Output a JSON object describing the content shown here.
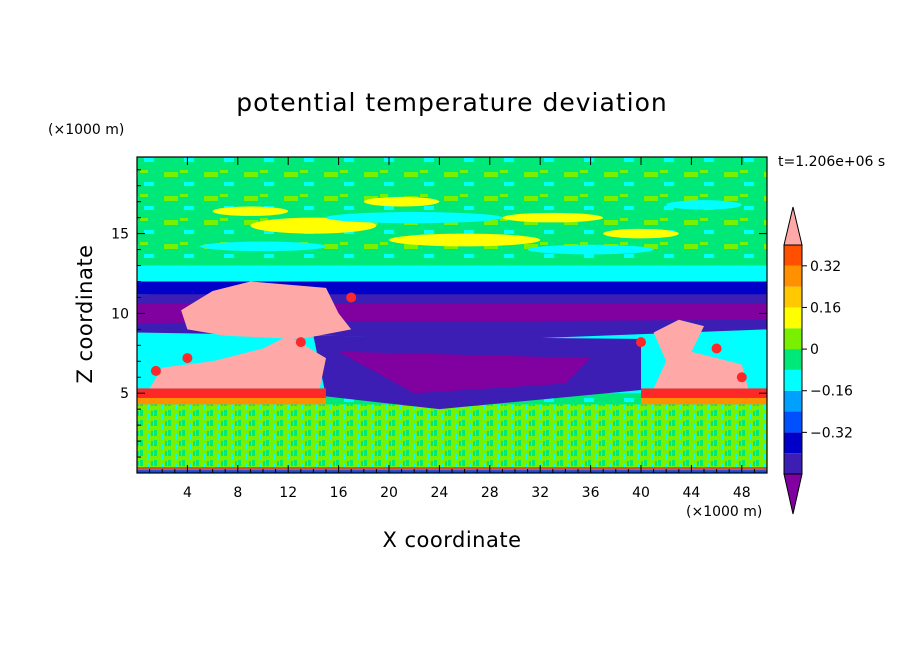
{
  "chart_data": {
    "type": "heatmap",
    "title": "potential temperature deviation",
    "xlabel": "X coordinate",
    "ylabel": "Z coordinate",
    "x_unit": "(×1000 m)",
    "y_unit": "(×1000 m)",
    "time_label": "t=1.206e+06 s",
    "xlim": [
      0,
      50
    ],
    "ylim": [
      0,
      19.8
    ],
    "x_ticks": [
      4,
      8,
      12,
      16,
      20,
      24,
      28,
      32,
      36,
      40,
      44,
      48
    ],
    "y_ticks": [
      5,
      10,
      15
    ],
    "colorbar": {
      "levels": [
        -0.48,
        -0.4,
        -0.32,
        -0.24,
        -0.16,
        -0.08,
        0,
        0.08,
        0.16,
        0.24,
        0.32,
        0.4
      ],
      "colors": [
        "#8000a0",
        "#3c1eb4",
        "#0000c8",
        "#0050ff",
        "#00a0ff",
        "#00ffff",
        "#00e878",
        "#78f000",
        "#ffff00",
        "#ffc800",
        "#ff9000",
        "#ff5000",
        "#ff2828",
        "#ffa8a8"
      ],
      "tick_labels": [
        "0.32",
        "0.16",
        "0",
        "−0.16",
        "−0.32"
      ],
      "tick_values": [
        0.32,
        0.16,
        0,
        -0.16,
        -0.32
      ],
      "extend": "both"
    },
    "regions": [
      {
        "name": "upper-layer",
        "z_range": [
          13.5,
          19.8
        ],
        "dominant_value": 0.02
      },
      {
        "name": "cold-band",
        "z_range": [
          6,
          12
        ],
        "dominant_value": -0.4
      },
      {
        "name": "warm-plume-left",
        "x_range": [
          3,
          14
        ],
        "z_range": [
          4.5,
          12
        ],
        "dominant_value": 0.45
      },
      {
        "name": "warm-plume-right",
        "x_range": [
          40,
          49
        ],
        "z_range": [
          4.5,
          9.5
        ],
        "dominant_value": 0.45
      },
      {
        "name": "lower-layer",
        "z_range": [
          0.3,
          4.3
        ],
        "dominant_value": 0.0
      }
    ]
  }
}
